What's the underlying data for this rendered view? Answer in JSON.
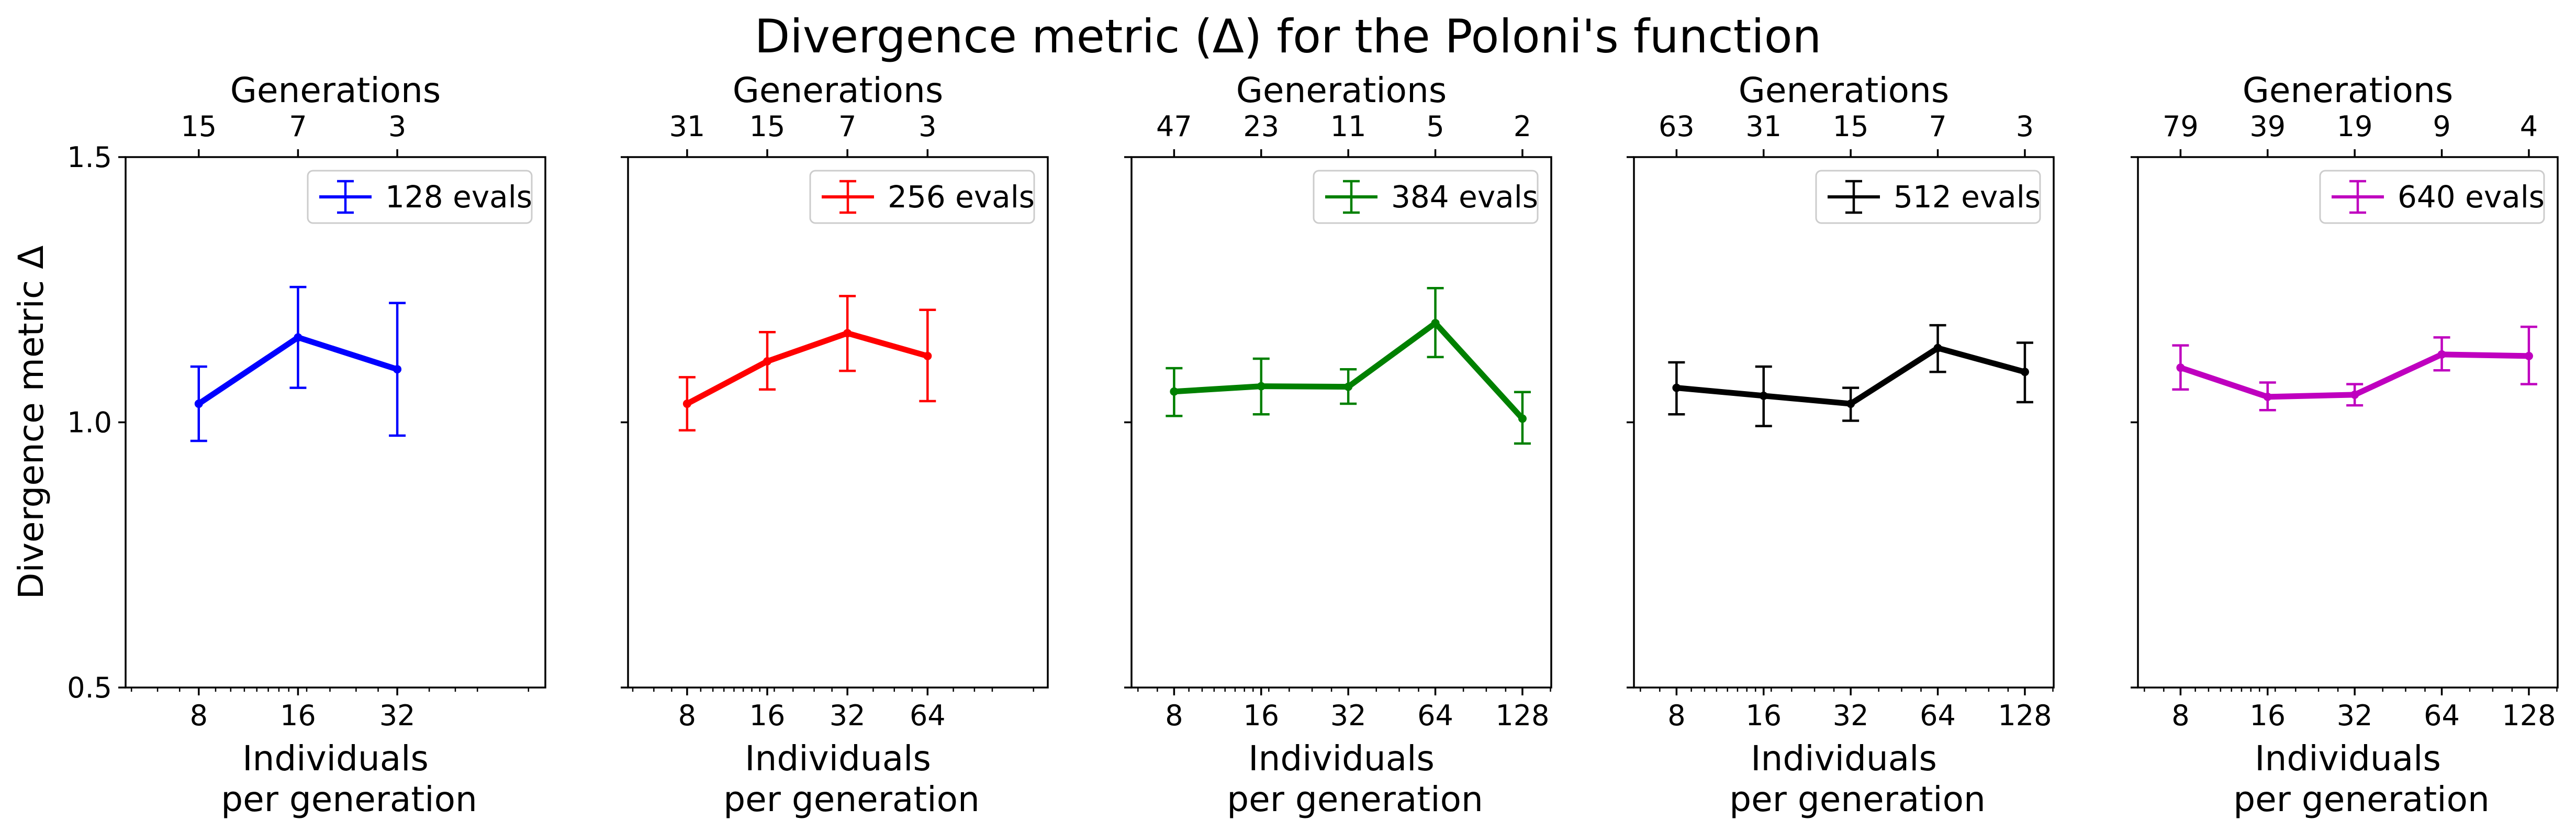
{
  "figure": {
    "title": "Divergence metric (Δ) for the Poloni's function"
  },
  "chart_data": [
    {
      "type": "line",
      "title": "",
      "xlabel": "Individuals per generation",
      "ylabel": "Divergence metric Δ",
      "top_xlabel": "Generations",
      "xscale": "log2",
      "xlim": [
        4.8,
        90
      ],
      "ylim": [
        0.5,
        1.5
      ],
      "yticks": [
        "0.5",
        "1.0",
        "1.5"
      ],
      "show_yticklabels": true,
      "x": [
        8,
        16,
        32
      ],
      "xtick_labels": [
        "8",
        "16",
        "32"
      ],
      "top_tick_labels": [
        "15",
        "7",
        "3"
      ],
      "legend_position": "upper right",
      "series": [
        {
          "name": "128 evals",
          "color": "#0000ff",
          "values": [
            1.035,
            1.16,
            1.1
          ],
          "yerr_low": [
            0.965,
            1.065,
            0.975
          ],
          "yerr_high": [
            1.105,
            1.255,
            1.225
          ]
        }
      ]
    },
    {
      "type": "line",
      "title": "",
      "xlabel": "Individuals per generation",
      "ylabel": "",
      "top_xlabel": "Generations",
      "xscale": "log2",
      "xlim": [
        4.8,
        181
      ],
      "ylim": [
        0.5,
        1.5
      ],
      "yticks": [
        "0.5",
        "1.0",
        "1.5"
      ],
      "show_yticklabels": false,
      "x": [
        8,
        16,
        32,
        64
      ],
      "xtick_labels": [
        "8",
        "16",
        "32",
        "64"
      ],
      "top_tick_labels": [
        "31",
        "15",
        "7",
        "3"
      ],
      "legend_position": "upper right",
      "series": [
        {
          "name": "256 evals",
          "color": "#ff0000",
          "values": [
            1.035,
            1.115,
            1.168,
            1.125
          ],
          "yerr_low": [
            0.985,
            1.062,
            1.097,
            1.04
          ],
          "yerr_high": [
            1.085,
            1.17,
            1.238,
            1.212
          ]
        }
      ]
    },
    {
      "type": "line",
      "title": "",
      "xlabel": "Individuals per generation",
      "ylabel": "",
      "top_xlabel": "Generations",
      "xscale": "log2",
      "xlim": [
        5.7,
        161
      ],
      "ylim": [
        0.5,
        1.5
      ],
      "yticks": [
        "0.5",
        "1.0",
        "1.5"
      ],
      "show_yticklabels": false,
      "x": [
        8,
        16,
        32,
        64,
        128
      ],
      "xtick_labels": [
        "8",
        "16",
        "32",
        "64",
        "128"
      ],
      "top_tick_labels": [
        "47",
        "23",
        "11",
        "5",
        "2"
      ],
      "legend_position": "upper right",
      "series": [
        {
          "name": "384 evals",
          "color": "#008000",
          "values": [
            1.058,
            1.068,
            1.067,
            1.187,
            1.007
          ],
          "yerr_low": [
            1.012,
            1.015,
            1.035,
            1.123,
            0.96
          ],
          "yerr_high": [
            1.102,
            1.12,
            1.1,
            1.253,
            1.057
          ]
        }
      ]
    },
    {
      "type": "line",
      "title": "",
      "xlabel": "Individuals per generation",
      "ylabel": "",
      "top_xlabel": "Generations",
      "xscale": "log2",
      "xlim": [
        5.7,
        161
      ],
      "ylim": [
        0.5,
        1.5
      ],
      "yticks": [
        "0.5",
        "1.0",
        "1.5"
      ],
      "show_yticklabels": false,
      "x": [
        8,
        16,
        32,
        64,
        128
      ],
      "xtick_labels": [
        "8",
        "16",
        "32",
        "64",
        "128"
      ],
      "top_tick_labels": [
        "63",
        "31",
        "15",
        "7",
        "3"
      ],
      "legend_position": "upper right",
      "series": [
        {
          "name": "512 evals",
          "color": "#000000",
          "values": [
            1.065,
            1.05,
            1.035,
            1.14,
            1.095
          ],
          "yerr_low": [
            1.015,
            0.993,
            1.003,
            1.095,
            1.038
          ],
          "yerr_high": [
            1.113,
            1.105,
            1.065,
            1.183,
            1.15
          ]
        }
      ]
    },
    {
      "type": "line",
      "title": "",
      "xlabel": "Individuals per generation",
      "ylabel": "",
      "top_xlabel": "Generations",
      "xscale": "log2",
      "xlim": [
        5.7,
        161
      ],
      "ylim": [
        0.5,
        1.5
      ],
      "yticks": [
        "0.5",
        "1.0",
        "1.5"
      ],
      "show_yticklabels": false,
      "x": [
        8,
        16,
        32,
        64,
        128
      ],
      "xtick_labels": [
        "8",
        "16",
        "32",
        "64",
        "128"
      ],
      "top_tick_labels": [
        "79",
        "39",
        "19",
        "9",
        "4"
      ],
      "legend_position": "upper right",
      "series": [
        {
          "name": "640 evals",
          "color": "#bf00bf",
          "values": [
            1.103,
            1.048,
            1.052,
            1.128,
            1.125
          ],
          "yerr_low": [
            1.062,
            1.023,
            1.032,
            1.098,
            1.072
          ],
          "yerr_high": [
            1.145,
            1.075,
            1.072,
            1.16,
            1.18
          ]
        }
      ]
    }
  ]
}
